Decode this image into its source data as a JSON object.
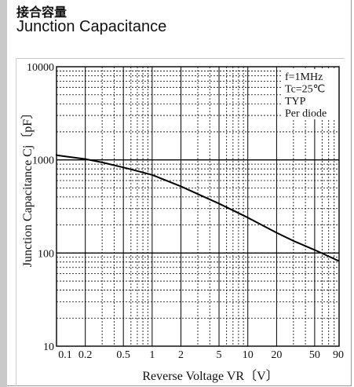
{
  "title_cn": "接合容量",
  "title_en": "Junction Capacitance",
  "colors": {
    "grid": "#000000",
    "curve": "#000000",
    "sidebar": "#c9c9c9"
  },
  "chart_data": {
    "type": "line",
    "x_scale": "log",
    "y_scale": "log",
    "xlim": [
      0.1,
      90
    ],
    "ylim": [
      10,
      10000
    ],
    "xlabel": "Reverse Voltage  VR〔V〕",
    "ylabel": "Junction Capacitance  Cj〔pF〕",
    "x_ticks": [
      "0.1",
      "0.2",
      "0.5",
      "1",
      "2",
      "5",
      "10",
      "20",
      "50",
      "90"
    ],
    "y_ticks": [
      "10",
      "100",
      "1000",
      "10000"
    ],
    "annotations": [
      "f=1MHz",
      "Tc=25℃",
      "TYP",
      "Per diode"
    ],
    "grid": true,
    "series": [
      {
        "x": [
          0.085,
          0.1,
          0.2,
          0.3,
          0.5,
          0.7,
          1,
          2,
          3,
          5,
          10,
          20,
          30,
          50,
          90
        ],
        "y": [
          1150,
          1120,
          1020,
          940,
          830,
          760,
          690,
          520,
          430,
          340,
          240,
          165,
          135,
          108,
          82
        ]
      }
    ]
  }
}
